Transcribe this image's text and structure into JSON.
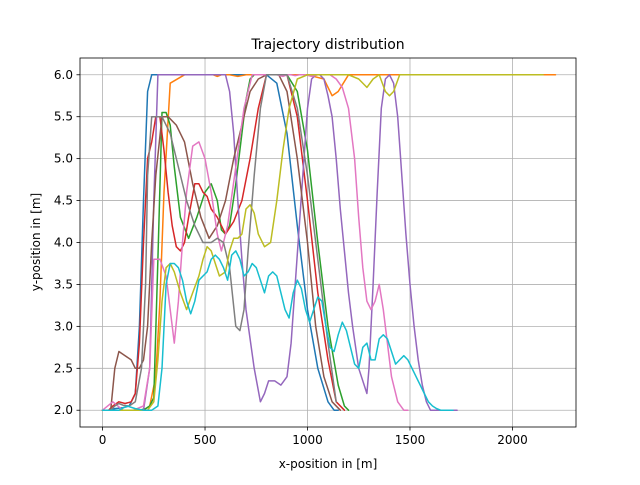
{
  "chart_data": {
    "type": "line",
    "title": "Trajectory distribution",
    "xlabel": "x-position in [m]",
    "ylabel": "y-position in [m]",
    "xlim": [
      -110,
      2310
    ],
    "ylim": [
      1.8,
      6.2
    ],
    "xticks": [
      0,
      500,
      1000,
      1500,
      2000
    ],
    "yticks": [
      2.0,
      2.5,
      3.0,
      3.5,
      4.0,
      4.5,
      5.0,
      5.5,
      6.0
    ],
    "xtick_labels": [
      "0",
      "500",
      "1000",
      "1500",
      "2000"
    ],
    "ytick_labels": [
      "2.0",
      "2.5",
      "3.0",
      "3.5",
      "4.0",
      "4.5",
      "5.0",
      "5.5",
      "6.0"
    ],
    "grid": true,
    "legend": "none",
    "series": [
      {
        "color": "#1f77b4",
        "x": [
          0,
          30,
          60,
          100,
          130,
          160,
          180,
          200,
          220,
          240,
          280,
          330,
          600,
          620,
          700,
          800,
          850,
          900,
          950,
          1000,
          1050,
          1100,
          1130,
          1150
        ],
        "y": [
          2.0,
          2.0,
          2.02,
          2.03,
          2.05,
          2.2,
          3.0,
          4.5,
          5.8,
          6.0,
          6.0,
          6.0,
          6.0,
          6.0,
          6.0,
          6.0,
          5.9,
          5.3,
          4.2,
          3.2,
          2.5,
          2.1,
          2.0,
          2.0
        ]
      },
      {
        "color": "#ff7f0e",
        "x": [
          0,
          60,
          160,
          200,
          230,
          260,
          280,
          300,
          330,
          400,
          500,
          540,
          560,
          580,
          620,
          660,
          700,
          760,
          800,
          1000,
          1080,
          1120,
          1150,
          1200,
          1400,
          2000,
          2210
        ],
        "y": [
          2.0,
          2.0,
          2.0,
          2.0,
          2.05,
          2.4,
          3.3,
          4.6,
          5.9,
          6.0,
          6.0,
          6.0,
          5.98,
          6.0,
          6.0,
          5.98,
          6.0,
          6.0,
          6.0,
          6.0,
          5.95,
          5.75,
          5.8,
          6.0,
          6.0,
          6.0,
          6.0
        ]
      },
      {
        "color": "#2ca02c",
        "x": [
          0,
          100,
          180,
          210,
          230,
          250,
          270,
          290,
          310,
          330,
          350,
          380,
          420,
          460,
          500,
          530,
          560,
          580,
          600,
          620,
          650,
          680,
          700,
          720,
          740,
          760,
          790,
          900,
          950,
          1000,
          1050,
          1100,
          1150,
          1180,
          1200
        ],
        "y": [
          2.0,
          2.0,
          2.0,
          2.02,
          2.05,
          2.15,
          3.8,
          5.55,
          5.55,
          5.4,
          4.9,
          4.3,
          4.05,
          4.3,
          4.6,
          4.7,
          4.5,
          4.15,
          4.1,
          4.2,
          4.7,
          5.3,
          5.7,
          5.95,
          6.0,
          6.0,
          6.0,
          6.0,
          5.8,
          5.1,
          4.0,
          3.0,
          2.3,
          2.05,
          2.0
        ]
      },
      {
        "color": "#d62728",
        "x": [
          0,
          30,
          50,
          80,
          110,
          140,
          160,
          180,
          200,
          220,
          240,
          260,
          280,
          300,
          320,
          340,
          360,
          380,
          400,
          420,
          450,
          470,
          490,
          510,
          530,
          560,
          600,
          640,
          680,
          720,
          760,
          800,
          850,
          900,
          950,
          1000,
          1050,
          1100,
          1140,
          1180
        ],
        "y": [
          2.0,
          2.0,
          2.05,
          2.1,
          2.08,
          2.1,
          2.2,
          2.8,
          4.0,
          5.0,
          5.2,
          5.5,
          5.5,
          5.1,
          4.6,
          4.2,
          3.95,
          3.9,
          4.0,
          4.3,
          4.7,
          4.7,
          4.6,
          4.55,
          4.4,
          4.3,
          4.1,
          4.25,
          4.5,
          5.0,
          5.6,
          6.0,
          6.0,
          6.0,
          5.5,
          4.5,
          3.4,
          2.6,
          2.1,
          2.0
        ]
      },
      {
        "color": "#9467bd",
        "x": [
          0,
          100,
          200,
          230,
          250,
          270,
          300,
          350,
          500,
          600,
          620,
          640,
          660,
          680,
          700,
          740,
          770,
          790,
          810,
          840,
          870,
          900,
          920,
          940,
          960,
          980,
          1000,
          1020,
          1040,
          1060,
          1080,
          1100,
          1120,
          1140,
          1160,
          1180,
          1200,
          1220,
          1250,
          1290,
          1300,
          1320,
          1340,
          1360,
          1380,
          1400,
          1420,
          1440,
          1460,
          1480,
          1500,
          1520,
          1540,
          1560,
          1580,
          1600,
          1640,
          1680,
          1710,
          1730
        ],
        "y": [
          2.0,
          2.0,
          2.0,
          2.5,
          4.5,
          6.0,
          6.0,
          6.0,
          6.0,
          6.0,
          5.8,
          5.3,
          4.5,
          3.8,
          3.2,
          2.5,
          2.1,
          2.2,
          2.35,
          2.35,
          2.3,
          2.4,
          2.8,
          3.5,
          4.2,
          4.9,
          5.6,
          5.95,
          6.0,
          6.0,
          5.95,
          5.75,
          5.5,
          5.0,
          4.4,
          3.9,
          3.4,
          3.0,
          2.5,
          2.2,
          2.5,
          3.5,
          4.6,
          5.6,
          5.95,
          6.0,
          5.9,
          5.5,
          4.8,
          4.1,
          3.5,
          3.0,
          2.6,
          2.3,
          2.1,
          2.0,
          2.0,
          2.0,
          2.0,
          2.0
        ]
      },
      {
        "color": "#8c564b",
        "x": [
          0,
          40,
          60,
          80,
          110,
          140,
          160,
          180,
          200,
          220,
          240,
          260,
          290,
          320,
          360,
          400,
          440,
          480,
          520,
          560,
          600,
          640,
          680,
          720,
          760,
          800,
          860,
          900,
          950,
          1000,
          1040,
          1080,
          1120,
          1160
        ],
        "y": [
          2.0,
          2.0,
          2.5,
          2.7,
          2.65,
          2.6,
          2.5,
          2.5,
          2.6,
          3.0,
          4.0,
          4.8,
          5.5,
          5.5,
          5.4,
          5.2,
          4.7,
          4.3,
          4.05,
          4.2,
          4.5,
          5.0,
          5.4,
          5.8,
          5.95,
          6.0,
          6.0,
          5.8,
          5.0,
          4.0,
          3.0,
          2.4,
          2.1,
          2.0
        ]
      },
      {
        "color": "#e377c2",
        "x": [
          0,
          50,
          100,
          150,
          200,
          230,
          250,
          280,
          310,
          330,
          350,
          370,
          390,
          410,
          440,
          470,
          500,
          530,
          560,
          580,
          610,
          650,
          690,
          730,
          770,
          810,
          850,
          880,
          900,
          920,
          940,
          960,
          990,
          1020,
          1050,
          1080,
          1110,
          1140,
          1170,
          1200,
          1230,
          1250,
          1270,
          1290,
          1310,
          1330,
          1350,
          1370,
          1390,
          1410,
          1440,
          1470,
          1490
        ],
        "y": [
          2.0,
          2.1,
          2.0,
          2.0,
          2.05,
          2.5,
          3.8,
          3.8,
          3.6,
          3.2,
          2.8,
          3.3,
          4.0,
          4.6,
          5.15,
          5.2,
          5.0,
          4.6,
          4.1,
          3.9,
          4.2,
          4.9,
          5.6,
          6.0,
          6.0,
          6.0,
          6.0,
          5.98,
          6.0,
          6.0,
          5.99,
          6.0,
          6.0,
          5.98,
          6.0,
          6.0,
          6.0,
          5.95,
          5.85,
          5.6,
          5.0,
          4.3,
          3.7,
          3.3,
          3.2,
          3.3,
          3.5,
          3.2,
          2.8,
          2.4,
          2.1,
          2.0,
          2.0
        ]
      },
      {
        "color": "#7f7f7f",
        "x": [
          0,
          40,
          60,
          80,
          100,
          130,
          160,
          190,
          210,
          220,
          240,
          260,
          290,
          330,
          370,
          410,
          450,
          490,
          530,
          560,
          590,
          620,
          650,
          670,
          690,
          710,
          740,
          770,
          800,
          850,
          900,
          950,
          1000,
          1050,
          1100,
          1140
        ],
        "y": [
          2.0,
          2.0,
          2.05,
          2.08,
          2.06,
          2.05,
          2.1,
          2.5,
          3.5,
          4.8,
          5.5,
          5.5,
          5.5,
          5.3,
          4.9,
          4.5,
          4.2,
          4.0,
          4.0,
          4.05,
          4.0,
          3.7,
          3.0,
          2.95,
          3.2,
          3.9,
          4.8,
          5.6,
          6.0,
          6.0,
          6.0,
          5.6,
          4.8,
          3.8,
          2.8,
          2.1
        ]
      },
      {
        "color": "#bcbd22",
        "x": [
          0,
          100,
          220,
          250,
          270,
          290,
          310,
          330,
          350,
          380,
          410,
          440,
          470,
          490,
          510,
          530,
          550,
          570,
          600,
          620,
          640,
          660,
          680,
          700,
          720,
          740,
          760,
          790,
          820,
          850,
          880,
          910,
          950,
          1000,
          1050,
          1100,
          1150,
          1200,
          1250,
          1290,
          1320,
          1350,
          1380,
          1400,
          1420,
          1450,
          1500,
          1600,
          1800,
          2000,
          2150
        ],
        "y": [
          2.0,
          2.0,
          2.0,
          2.1,
          2.6,
          3.3,
          3.7,
          3.75,
          3.65,
          3.4,
          3.2,
          3.4,
          3.6,
          3.8,
          3.95,
          3.9,
          3.75,
          3.6,
          3.65,
          3.9,
          4.05,
          4.05,
          4.1,
          4.4,
          4.45,
          4.35,
          4.1,
          3.95,
          4.0,
          4.5,
          5.1,
          5.6,
          5.95,
          6.0,
          6.0,
          6.0,
          6.0,
          6.0,
          5.95,
          5.85,
          5.95,
          6.0,
          5.8,
          5.75,
          5.8,
          6.0,
          6.0,
          6.0,
          6.0,
          6.0,
          6.0
        ]
      },
      {
        "color": "#17becf",
        "x": [
          0,
          30,
          80,
          120,
          160,
          200,
          240,
          270,
          290,
          310,
          330,
          350,
          370,
          390,
          410,
          430,
          450,
          470,
          490,
          510,
          530,
          550,
          570,
          590,
          610,
          630,
          650,
          670,
          690,
          710,
          730,
          750,
          770,
          790,
          810,
          830,
          850,
          870,
          890,
          910,
          930,
          950,
          970,
          990,
          1010,
          1030,
          1050,
          1070,
          1090,
          1110,
          1130,
          1150,
          1170,
          1190,
          1210,
          1230,
          1250,
          1270,
          1290,
          1310,
          1330,
          1350,
          1370,
          1390,
          1410,
          1430,
          1450,
          1470,
          1490,
          1510,
          1530,
          1550,
          1570,
          1590,
          1610,
          1630,
          1650,
          1670,
          1690,
          1710
        ],
        "y": [
          2.0,
          2.0,
          2.0,
          2.05,
          2.02,
          2.0,
          2.0,
          2.05,
          2.5,
          3.5,
          3.75,
          3.75,
          3.7,
          3.55,
          3.3,
          3.15,
          3.3,
          3.55,
          3.6,
          3.65,
          3.8,
          3.85,
          3.8,
          3.7,
          3.55,
          3.85,
          3.9,
          3.8,
          3.6,
          3.65,
          3.75,
          3.7,
          3.55,
          3.4,
          3.6,
          3.65,
          3.6,
          3.4,
          3.2,
          3.1,
          3.4,
          3.55,
          3.45,
          3.2,
          3.05,
          3.2,
          3.35,
          3.3,
          3.0,
          2.75,
          2.7,
          2.9,
          3.05,
          2.95,
          2.75,
          2.55,
          2.5,
          2.75,
          2.8,
          2.6,
          2.6,
          2.85,
          2.9,
          2.85,
          2.7,
          2.55,
          2.6,
          2.65,
          2.6,
          2.5,
          2.4,
          2.3,
          2.2,
          2.1,
          2.05,
          2.02,
          2.0,
          2.0,
          2.0,
          2.0
        ]
      }
    ]
  }
}
